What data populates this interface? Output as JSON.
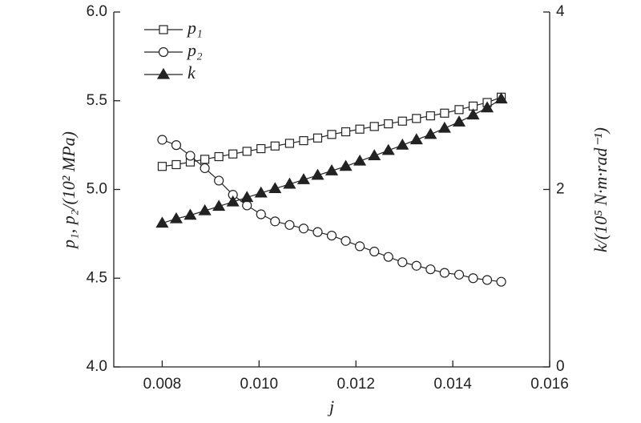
{
  "chart_data": {
    "type": "line",
    "xlabel": "j",
    "ylabel": "p₁, p₂/(10² MPa)",
    "y2label": "k/(10⁵ N·m·rad⁻¹)",
    "x": [
      0.008,
      0.00829,
      0.00858,
      0.00888,
      0.00917,
      0.00946,
      0.00975,
      0.01004,
      0.01033,
      0.01063,
      0.01092,
      0.01121,
      0.0115,
      0.01179,
      0.01208,
      0.01238,
      0.01267,
      0.01296,
      0.01325,
      0.01354,
      0.01383,
      0.01413,
      0.01442,
      0.01471,
      0.015
    ],
    "series": [
      {
        "name": "p₁",
        "color": "#222222",
        "marker": "square",
        "values": [
          5.13,
          5.14,
          5.155,
          5.17,
          5.185,
          5.2,
          5.215,
          5.23,
          5.245,
          5.26,
          5.275,
          5.29,
          5.31,
          5.325,
          5.34,
          5.355,
          5.37,
          5.385,
          5.4,
          5.415,
          5.43,
          5.45,
          5.47,
          5.49,
          5.52
        ]
      },
      {
        "name": "p₂",
        "color": "#222222",
        "marker": "circle",
        "values": [
          5.28,
          5.25,
          5.19,
          5.12,
          5.05,
          4.97,
          4.91,
          4.86,
          4.82,
          4.8,
          4.78,
          4.76,
          4.74,
          4.71,
          4.68,
          4.65,
          4.62,
          4.59,
          4.57,
          4.55,
          4.53,
          4.52,
          4.5,
          4.49,
          4.48
        ]
      },
      {
        "name": "k",
        "color": "#222222",
        "marker": "triangle",
        "axis": "y2",
        "values": [
          1.62,
          1.67,
          1.71,
          1.76,
          1.81,
          1.86,
          1.91,
          1.96,
          2.01,
          2.06,
          2.11,
          2.16,
          2.21,
          2.26,
          2.32,
          2.38,
          2.44,
          2.5,
          2.56,
          2.62,
          2.69,
          2.76,
          2.84,
          2.92,
          3.02
        ]
      }
    ],
    "xlim": [
      0.007,
      0.016
    ],
    "xticks": [
      0.008,
      {
        "value": 0.01,
        "label": "0.010"
      },
      0.012,
      0.014,
      0.016
    ],
    "ylim": [
      4,
      6
    ],
    "yticks": [
      {
        "value": 4,
        "label": "4.0"
      },
      4.5,
      {
        "value": 5,
        "label": "5.0"
      },
      5.5,
      {
        "value": 6,
        "label": "6.0"
      }
    ],
    "y2lim": [
      0,
      4
    ],
    "y2ticks": [
      0,
      2,
      4
    ],
    "legend": "upper left"
  }
}
